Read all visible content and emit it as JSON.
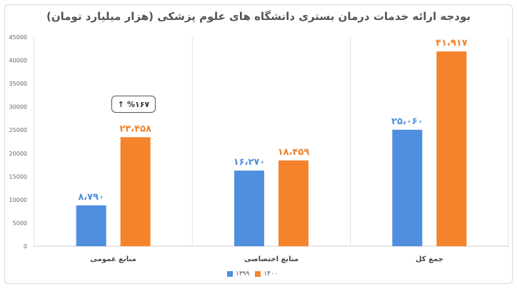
{
  "chart_data": {
    "type": "bar",
    "title": "بودجه ارائه خدمات درمان بستری دانشگاه های علوم پزشکی (هزار میلیارد تومان)",
    "categories": [
      "منابع عمومی",
      "منابع اختصاصی",
      "جمع کل"
    ],
    "series": [
      {
        "name": "۱۳۹۹",
        "values": [
          8790,
          16270,
          25060
        ],
        "labels": [
          "۸،۷۹۰",
          "۱۶،۲۷۰",
          "۲۵،۰۶۰"
        ],
        "color": "#4f8fde"
      },
      {
        "name": "۱۴۰۰",
        "values": [
          23458,
          18459,
          41917
        ],
        "labels": [
          "۲۳،۴۵۸",
          "۱۸،۴۵۹",
          "۴۱،۹۱۷"
        ],
        "color": "#f5832b"
      }
    ],
    "ylim": [
      0,
      45000
    ],
    "yticks": [
      "0",
      "5000",
      "10000",
      "15000",
      "20000",
      "25000",
      "30000",
      "35000",
      "40000",
      "45000"
    ],
    "grid": "vertical",
    "legend": "bottom-center",
    "annotation": {
      "text": "%۱۶۷",
      "arrow": "up-arrow-icon"
    }
  }
}
